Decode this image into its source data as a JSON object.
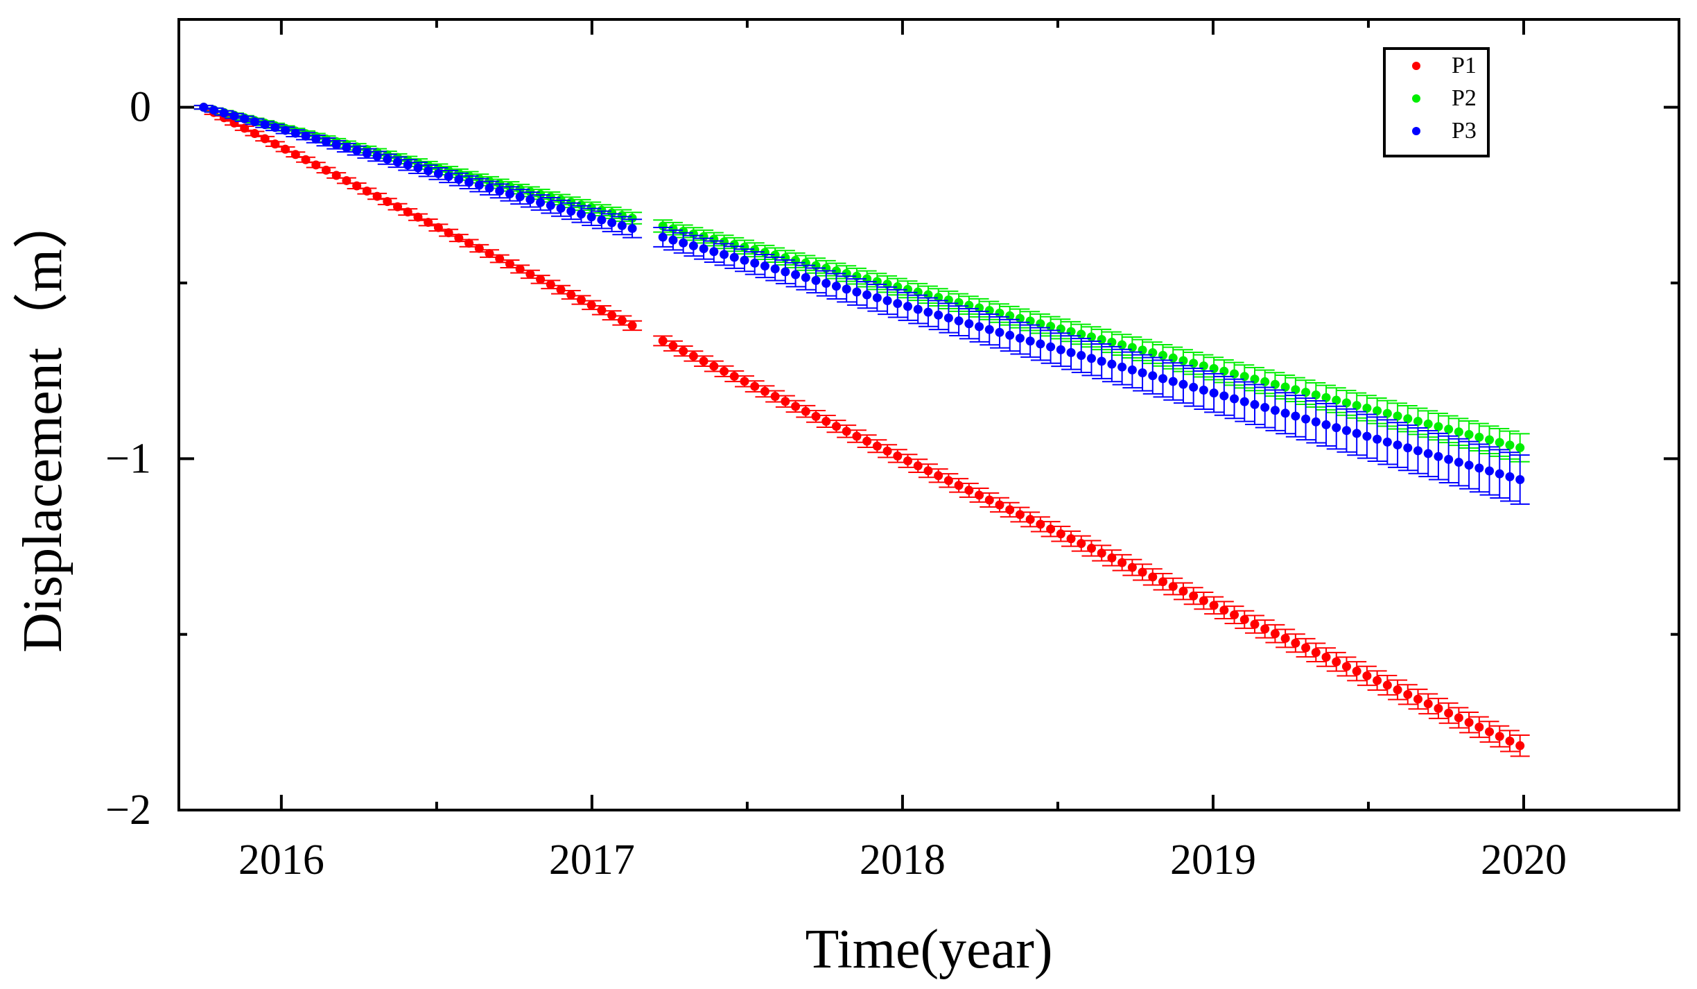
{
  "chart_data": {
    "type": "scatter",
    "title": "",
    "xlabel": "Time(year)",
    "ylabel": "Displacement（m）",
    "xlim": [
      2015.67,
      2020.5
    ],
    "ylim": [
      -2.0,
      0.25
    ],
    "xticks": [
      2016,
      2017,
      2018,
      2019,
      2020
    ],
    "xtick_labels": [
      "2016",
      "2017",
      "2018",
      "2019",
      "2020"
    ],
    "yticks": [
      0,
      -1,
      -2
    ],
    "ytick_labels": [
      "0",
      "−1",
      "−2"
    ],
    "grid": false,
    "legend_position": "top-right",
    "series": [
      {
        "name": "P1",
        "color": "#ff0000",
        "rate": -0.4286,
        "curvature": 0.035,
        "err_start": 0.005,
        "err_end": 0.03
      },
      {
        "name": "P2",
        "color": "#00ee00",
        "rate": -0.2286,
        "curvature": 0.0,
        "err_start": 0.005,
        "err_end": 0.04
      },
      {
        "name": "P3",
        "color": "#0000ff",
        "rate": -0.25,
        "curvature": 0.0,
        "err_start": 0.005,
        "err_end": 0.07
      }
    ],
    "x_start": 2015.75,
    "x_end": 2020.0,
    "gap": [
      2017.16,
      2017.22
    ]
  }
}
